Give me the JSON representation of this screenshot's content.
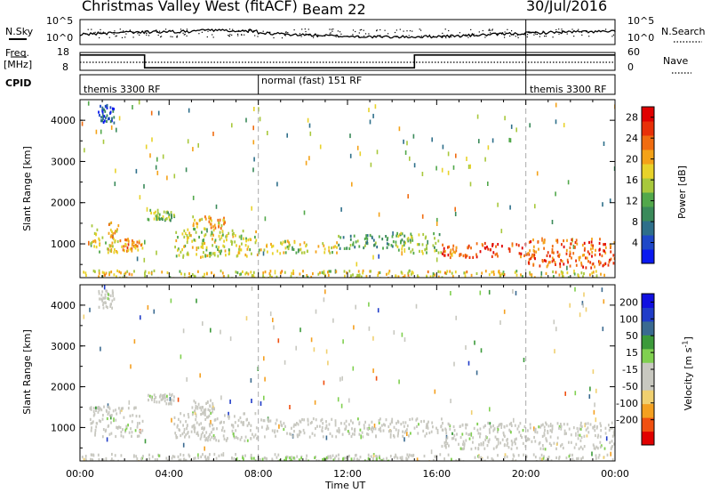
{
  "header": {
    "station": "Christmas Valley West (fitACF)",
    "beam": "Beam 22",
    "date": "30/Jul/2016"
  },
  "top_panels": {
    "nsky_label": "N.Sky",
    "nsky_ticks": [
      "10^5",
      "10^0"
    ],
    "nsearch_label": "N.Search",
    "nsearch_ticks": [
      "10^5",
      "10^0"
    ],
    "freq_label": "Freq.",
    "freq_unit": "[MHz]",
    "freq_ticks": [
      "18",
      "8"
    ],
    "nave_label": "Nave",
    "nave_ticks": [
      "60",
      "0"
    ],
    "cpid_label": "CPID",
    "cpid_segments": [
      {
        "label": "themis 3300 RF",
        "start_hour": 0,
        "end_hour": 8
      },
      {
        "label": "normal (fast) 151 RF",
        "start_hour": 8,
        "end_hour": 20
      },
      {
        "label": "themis 3300 RF",
        "start_hour": 20,
        "end_hour": 24
      }
    ],
    "freq_steps": [
      {
        "start_hour": 0,
        "end_hour": 2.9,
        "mhz": 17
      },
      {
        "start_hour": 2.9,
        "end_hour": 15,
        "mhz": 9
      },
      {
        "start_hour": 15,
        "end_hour": 20,
        "mhz": 17
      },
      {
        "start_hour": 20,
        "end_hour": 24,
        "mhz": 17
      }
    ]
  },
  "colors": {
    "power_scale": [
      "#0a19f0",
      "#1f48c8",
      "#2e6f8a",
      "#3a8a5a",
      "#52a84b",
      "#a8c83c",
      "#e8d22a",
      "#f4a218",
      "#f06c10",
      "#e83008",
      "#e00000"
    ],
    "velocity_scale": [
      "#e00000",
      "#f05010",
      "#f4a020",
      "#f0d070",
      "#c8c8c0",
      "#c8c8c0",
      "#80d050",
      "#3c9a3a",
      "#3a6a90",
      "#203cc8",
      "#1010e0"
    ]
  },
  "chart_data": [
    {
      "type": "heatmap",
      "title": "",
      "xlabel": "",
      "ylabel": "Slant Range [km]",
      "xlim_hours": [
        0,
        24
      ],
      "ylim": [
        180,
        4500
      ],
      "ytick_labels": [
        "1000",
        "2000",
        "3000",
        "4000"
      ],
      "colorbar_label": "Power [dB]",
      "colorbar_ticks": [
        "4",
        "8",
        "12",
        "16",
        "20",
        "24",
        "28"
      ],
      "colorbar_range": [
        0,
        30
      ],
      "scatter_regions": [
        {
          "t0": 0.4,
          "t1": 1.7,
          "r0": 800,
          "r1": 1550,
          "level": 18
        },
        {
          "t0": 1.7,
          "t1": 2.8,
          "r0": 850,
          "r1": 1150,
          "level": 22
        },
        {
          "t0": 3.0,
          "t1": 4.2,
          "r0": 1600,
          "r1": 1850,
          "level": 14
        },
        {
          "t0": 4.2,
          "t1": 8.0,
          "r0": 700,
          "r1": 1400,
          "level": 16
        },
        {
          "t0": 5.0,
          "t1": 6.5,
          "r0": 1400,
          "r1": 1700,
          "level": 20
        },
        {
          "t0": 8.0,
          "t1": 11.5,
          "r0": 800,
          "r1": 1100,
          "level": 17
        },
        {
          "t0": 11.5,
          "t1": 14.0,
          "r0": 900,
          "r1": 1250,
          "level": 10
        },
        {
          "t0": 14.0,
          "t1": 16.2,
          "r0": 800,
          "r1": 1300,
          "level": 14
        },
        {
          "t0": 16.2,
          "t1": 20.0,
          "r0": 700,
          "r1": 1050,
          "level": 26
        },
        {
          "t0": 20.0,
          "t1": 24.0,
          "r0": 450,
          "r1": 1150,
          "level": 25
        },
        {
          "t0": 0.0,
          "t1": 24.0,
          "r0": 180,
          "r1": 380,
          "level": 18
        },
        {
          "t0": 0.8,
          "t1": 1.5,
          "r0": 3950,
          "r1": 4400,
          "level": 4
        }
      ]
    },
    {
      "type": "heatmap",
      "title": "",
      "xlabel": "Time UT",
      "ylabel": "Slant Range [km]",
      "xlim_hours": [
        0,
        24
      ],
      "ylim": [
        180,
        4500
      ],
      "xtick_labels": [
        "00:00",
        "04:00",
        "08:00",
        "12:00",
        "16:00",
        "20:00",
        "00:00"
      ],
      "ytick_labels": [
        "1000",
        "2000",
        "3000",
        "4000"
      ],
      "colorbar_label": "Velocity [m s^-1]",
      "colorbar_ticks": [
        "-200",
        "-100",
        "-50",
        "-15",
        "15",
        "50",
        "100",
        "200"
      ],
      "colorbar_range": [
        -250,
        250
      ],
      "scatter_regions": [
        {
          "t0": 0.4,
          "t1": 2.8,
          "r0": 800,
          "r1": 1550,
          "vel": 0
        },
        {
          "t0": 3.0,
          "t1": 4.2,
          "r0": 1600,
          "r1": 1850,
          "vel": 0
        },
        {
          "t0": 4.2,
          "t1": 8.0,
          "r0": 700,
          "r1": 1400,
          "vel": 0
        },
        {
          "t0": 5.0,
          "t1": 6.0,
          "r0": 1350,
          "r1": 1700,
          "vel": -60
        },
        {
          "t0": 8.0,
          "t1": 16.2,
          "r0": 800,
          "r1": 1250,
          "vel": 0
        },
        {
          "t0": 16.2,
          "t1": 24.0,
          "r0": 500,
          "r1": 1150,
          "vel": 0
        },
        {
          "t0": 0.0,
          "t1": 24.0,
          "r0": 180,
          "r1": 380,
          "vel": -30
        },
        {
          "t0": 7.0,
          "t1": 14.0,
          "r0": 180,
          "r1": 300,
          "vel": 40
        },
        {
          "t0": 0.8,
          "t1": 1.5,
          "r0": 3950,
          "r1": 4400,
          "vel": 0
        }
      ]
    }
  ]
}
